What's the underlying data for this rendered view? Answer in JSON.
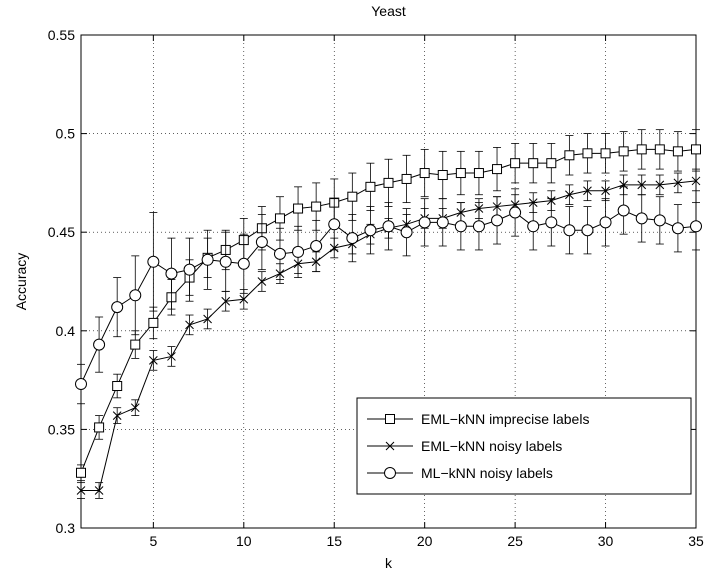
{
  "chart_data": {
    "type": "line",
    "title": "Yeast",
    "xlabel": "k",
    "ylabel": "Accuracy",
    "xlim": [
      1,
      35
    ],
    "ylim": [
      0.3,
      0.55
    ],
    "xticks": [
      5,
      10,
      15,
      20,
      25,
      30,
      35
    ],
    "yticks": [
      0.3,
      0.35,
      0.4,
      0.45,
      0.5,
      0.55
    ],
    "ytick_labels": [
      "0.3",
      "0.35",
      "0.4",
      "0.45",
      "0.5",
      "0.55"
    ],
    "grid": true,
    "legend_position": "bottom-right",
    "x": [
      1,
      2,
      3,
      4,
      5,
      6,
      7,
      8,
      9,
      10,
      11,
      12,
      13,
      14,
      15,
      16,
      17,
      18,
      19,
      20,
      21,
      22,
      23,
      24,
      25,
      26,
      27,
      28,
      29,
      30,
      31,
      32,
      33,
      34,
      35
    ],
    "series": [
      {
        "name": "EML−kNN imprecise labels",
        "marker": "square",
        "values": [
          0.328,
          0.351,
          0.372,
          0.393,
          0.404,
          0.417,
          0.427,
          0.437,
          0.441,
          0.446,
          0.452,
          0.457,
          0.462,
          0.463,
          0.465,
          0.468,
          0.473,
          0.475,
          0.477,
          0.48,
          0.479,
          0.48,
          0.48,
          0.482,
          0.485,
          0.485,
          0.485,
          0.489,
          0.49,
          0.49,
          0.491,
          0.492,
          0.492,
          0.491,
          0.492
        ],
        "errors": [
          0.004,
          0.006,
          0.006,
          0.007,
          0.008,
          0.009,
          0.009,
          0.01,
          0.01,
          0.011,
          0.011,
          0.011,
          0.011,
          0.012,
          0.012,
          0.012,
          0.012,
          0.012,
          0.012,
          0.012,
          0.012,
          0.011,
          0.011,
          0.011,
          0.01,
          0.01,
          0.01,
          0.01,
          0.01,
          0.01,
          0.01,
          0.01,
          0.01,
          0.01,
          0.01
        ]
      },
      {
        "name": "EML−kNN noisy labels",
        "marker": "x",
        "values": [
          0.319,
          0.319,
          0.357,
          0.361,
          0.385,
          0.387,
          0.403,
          0.406,
          0.415,
          0.416,
          0.425,
          0.429,
          0.434,
          0.435,
          0.442,
          0.444,
          0.449,
          0.452,
          0.454,
          0.457,
          0.457,
          0.46,
          0.462,
          0.463,
          0.464,
          0.465,
          0.466,
          0.469,
          0.471,
          0.471,
          0.474,
          0.474,
          0.474,
          0.475,
          0.476
        ],
        "errors": [
          0.004,
          0.004,
          0.004,
          0.004,
          0.005,
          0.005,
          0.005,
          0.005,
          0.005,
          0.005,
          0.005,
          0.005,
          0.005,
          0.005,
          0.005,
          0.005,
          0.005,
          0.005,
          0.005,
          0.005,
          0.005,
          0.005,
          0.005,
          0.005,
          0.005,
          0.005,
          0.005,
          0.005,
          0.005,
          0.005,
          0.005,
          0.005,
          0.005,
          0.005,
          0.005
        ]
      },
      {
        "name": "ML−kNN noisy labels",
        "marker": "circle",
        "values": [
          0.373,
          0.393,
          0.412,
          0.418,
          0.435,
          0.429,
          0.431,
          0.436,
          0.435,
          0.434,
          0.445,
          0.439,
          0.44,
          0.443,
          0.454,
          0.447,
          0.451,
          0.453,
          0.45,
          0.455,
          0.455,
          0.453,
          0.453,
          0.456,
          0.46,
          0.453,
          0.455,
          0.451,
          0.451,
          0.455,
          0.461,
          0.457,
          0.456,
          0.452,
          0.453
        ],
        "errors": [
          0.01,
          0.014,
          0.015,
          0.02,
          0.025,
          0.018,
          0.016,
          0.015,
          0.015,
          0.015,
          0.014,
          0.013,
          0.013,
          0.013,
          0.013,
          0.012,
          0.012,
          0.012,
          0.012,
          0.012,
          0.012,
          0.012,
          0.012,
          0.012,
          0.012,
          0.012,
          0.012,
          0.012,
          0.012,
          0.012,
          0.012,
          0.012,
          0.012,
          0.012,
          0.012
        ]
      }
    ]
  }
}
